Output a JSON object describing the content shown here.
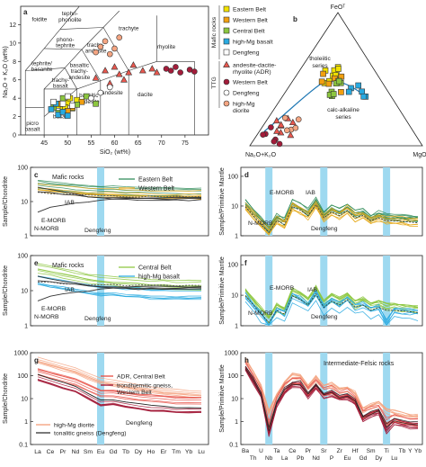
{
  "chart_data": [
    {
      "type": "scatter",
      "panel_label": "a",
      "xlabel": "SiO₂ (wt%)",
      "ylabel": "Na₂O + K₂O (wt%)",
      "xlim": [
        40,
        80
      ],
      "ylim": [
        0,
        14
      ],
      "xticks": [
        45,
        50,
        55,
        60,
        65,
        70,
        75
      ],
      "yticks": [
        0,
        2,
        4,
        6,
        8,
        10,
        12
      ],
      "fields": [
        "foidite",
        "tephri-phonolite",
        "phono-tephrite",
        "trachyte",
        "trachy-andesite",
        "tephrite/ basanite",
        "basaltic trachy-andesite",
        "rhyolite",
        "trachy-basalt",
        "dacite",
        "andesite",
        "basaltic andesite",
        "basalt",
        "picro basalt"
      ],
      "series": [
        {
          "name": "Eastern Belt",
          "color": "#f2e200",
          "points": [
            [
              48,
              3.2
            ],
            [
              49,
              2.8
            ],
            [
              50,
              3.5
            ],
            [
              51,
              2.9
            ],
            [
              52,
              3.8
            ],
            [
              50.5,
              4.0
            ],
            [
              49.5,
              3.0
            ]
          ]
        },
        {
          "name": "Western Belt",
          "color": "#f2a010",
          "points": [
            [
              48.5,
              3.4
            ],
            [
              51,
              3.0
            ],
            [
              53,
              3.6
            ],
            [
              50,
              2.6
            ]
          ]
        },
        {
          "name": "Central Belt",
          "color": "#8cc63f",
          "points": [
            [
              47,
              3.0
            ],
            [
              49,
              4.0
            ],
            [
              52,
              3.3
            ],
            [
              54,
              4.2
            ],
            [
              56,
              3.4
            ],
            [
              48,
              2.4
            ]
          ]
        },
        {
          "name": "high-Mg basalt",
          "color": "#29aae1",
          "points": [
            [
              46.5,
              2.8
            ],
            [
              48,
              2.2
            ],
            [
              49,
              2.5
            ],
            [
              47.5,
              3.4
            ],
            [
              50,
              2.1
            ]
          ]
        },
        {
          "name": "Dengfeng",
          "color": "#ffffff",
          "points": [
            [
              47,
              3.6
            ],
            [
              49,
              3.4
            ],
            [
              50,
              4.2
            ],
            [
              51,
              3.2
            ]
          ]
        },
        {
          "name": "andesite-dacite-rhyolite (ADR)",
          "color": "#e8574e",
          "points": [
            [
              56,
              6.2
            ],
            [
              58,
              7.0
            ],
            [
              60,
              7.4
            ],
            [
              61,
              6.6
            ],
            [
              63,
              6.8
            ],
            [
              64,
              7.6
            ],
            [
              66,
              7.0
            ],
            [
              68,
              7.2
            ],
            [
              69,
              6.8
            ],
            [
              59,
              5.6
            ],
            [
              62,
              6.0
            ]
          ]
        },
        {
          "name": "Western Belt",
          "color": "#a31c3a",
          "points": [
            [
              71,
              7.2
            ],
            [
              72,
              7.0
            ],
            [
              73,
              7.4
            ],
            [
              74,
              6.8
            ],
            [
              76,
              7.1
            ],
            [
              77,
              6.9
            ]
          ]
        },
        {
          "name": "Dengfeng",
          "color": "#ffffff",
          "points": [
            [
              55,
              4.0
            ],
            [
              57,
              4.6
            ],
            [
              59,
              5.2
            ]
          ]
        },
        {
          "name": "high-Mg diorite",
          "color": "#f4a582",
          "points": [
            [
              56,
              9.0
            ],
            [
              57,
              9.6
            ],
            [
              58,
              10.2
            ],
            [
              60,
              9.4
            ],
            [
              61,
              10.6
            ],
            [
              59,
              8.8
            ]
          ]
        }
      ]
    },
    {
      "type": "scatter",
      "panel_label": "b",
      "apices": [
        "FeOᵀ",
        "Na₂O+K₂O",
        "MgO"
      ],
      "curve_labels": [
        "tholeiitic series",
        "calc-alkaline series"
      ],
      "legend_groups": [
        {
          "title": "Mafic rocks",
          "items": [
            "Eastern Belt",
            "Western Belt",
            "Central Belt",
            "high-Mg basalt",
            "Dengfeng"
          ]
        },
        {
          "title": "TTG",
          "items": [
            "andesite-dacite-rhyolite (ADR)",
            "Western Belt",
            "Dengfeng",
            "high-Mg diorite"
          ]
        }
      ]
    },
    {
      "type": "line",
      "panel_label": "c",
      "title": "Mafic rocks",
      "ylabel": "Sample/Chondrite",
      "yscale": "log",
      "ylim": [
        1,
        100
      ],
      "yticks": [
        "1",
        "10",
        "100"
      ],
      "categories": [
        "La",
        "Ce",
        "Pr",
        "Nd",
        "Sm",
        "Eu",
        "Gd",
        "Tb",
        "Dy",
        "Ho",
        "Er",
        "Tm",
        "Yb",
        "Lu"
      ],
      "legend": [
        "Eastern Belt",
        "Western Belt"
      ],
      "annotations": [
        "IAB",
        "E-MORB",
        "N-MORB",
        "Dengfeng"
      ],
      "highlight_category": "Eu",
      "series": [
        {
          "name": "Eastern Belt",
          "color": "#2e8b57",
          "values": [
            30,
            27,
            25,
            23,
            21,
            20,
            20,
            19,
            19,
            18,
            18,
            18,
            17,
            17
          ]
        },
        {
          "name": "Western Belt",
          "color": "#e6a817",
          "values": [
            24,
            22,
            20,
            19,
            17,
            17,
            17,
            16,
            16,
            15,
            15,
            15,
            15,
            15
          ]
        },
        {
          "name": "IAB",
          "color": "#333333",
          "values": [
            26,
            22,
            19,
            17,
            14,
            13,
            12,
            12,
            11,
            11,
            11,
            11,
            11,
            11
          ]
        },
        {
          "name": "E-MORB",
          "color": "#333333",
          "values": [
            20,
            18,
            16,
            15,
            14,
            13,
            13,
            13,
            13,
            13,
            13,
            13,
            13,
            13
          ]
        },
        {
          "name": "N-MORB",
          "color": "#333333",
          "values": [
            5,
            7,
            8,
            9,
            10,
            11,
            12,
            12,
            12,
            12,
            12,
            12,
            12,
            12
          ]
        },
        {
          "name": "Dengfeng",
          "color": "#555555",
          "values": [
            18,
            17,
            16,
            16,
            15,
            15,
            15,
            14,
            14,
            14,
            14,
            14,
            14,
            14
          ]
        }
      ]
    },
    {
      "type": "line",
      "panel_label": "d",
      "ylabel": "Sample/Primitive Mantle",
      "yscale": "log",
      "ylim": [
        1,
        200
      ],
      "yticks": [
        "1",
        "10",
        "100"
      ],
      "categories_top": [
        "Ba",
        "U",
        "Ta",
        "Ce",
        "Pr",
        "Sr",
        "Zr",
        "Hf",
        "Sm",
        "Ti",
        "Tb",
        "Y",
        "Yb"
      ],
      "categories_bottom": [
        "Th",
        "Nb",
        "La",
        "Pb",
        "Nd",
        "P",
        "Eu",
        "Gd",
        "Dy",
        "Lu"
      ],
      "annotations": [
        "E-MORB",
        "IAB",
        "N-MORB",
        "Dengfeng"
      ],
      "highlight_categories": [
        "Nb",
        "Sr",
        "Ti"
      ]
    },
    {
      "type": "line",
      "panel_label": "e",
      "title": "Mafic rocks",
      "ylabel": "Sample/Chondrite",
      "yscale": "log",
      "ylim": [
        1,
        100
      ],
      "yticks": [
        "1",
        "10",
        "100"
      ],
      "categories": [
        "La",
        "Ce",
        "Pr",
        "Nd",
        "Sm",
        "Eu",
        "Gd",
        "Tb",
        "Dy",
        "Ho",
        "Er",
        "Tm",
        "Yb",
        "Lu"
      ],
      "legend": [
        "Central Belt",
        "high-Mg basalt"
      ],
      "annotations": [
        "IAB",
        "E-MORB",
        "N-MORB",
        "Dengfeng"
      ],
      "highlight_category": "Eu",
      "series": [
        {
          "name": "Central Belt",
          "color": "#8cc63f",
          "values": [
            40,
            34,
            28,
            24,
            20,
            18,
            17,
            16,
            15,
            14,
            14,
            13,
            13,
            13
          ]
        },
        {
          "name": "high-Mg basalt",
          "color": "#29aae1",
          "values": [
            20,
            17,
            15,
            13,
            11,
            10,
            10,
            9,
            9,
            8,
            8,
            8,
            8,
            8
          ]
        },
        {
          "name": "IAB",
          "color": "#333333",
          "values": [
            26,
            22,
            19,
            17,
            14,
            13,
            12,
            12,
            11,
            11,
            11,
            11,
            11,
            11
          ]
        },
        {
          "name": "E-MORB",
          "color": "#333333",
          "values": [
            20,
            18,
            16,
            15,
            14,
            13,
            13,
            13,
            13,
            13,
            13,
            13,
            13,
            13
          ]
        },
        {
          "name": "N-MORB",
          "color": "#333333",
          "values": [
            5,
            7,
            8,
            9,
            10,
            11,
            12,
            12,
            12,
            12,
            12,
            12,
            12,
            12
          ]
        },
        {
          "name": "Dengfeng",
          "color": "#555555",
          "values": [
            18,
            17,
            16,
            16,
            15,
            15,
            15,
            14,
            14,
            14,
            14,
            14,
            14,
            14
          ]
        }
      ]
    },
    {
      "type": "line",
      "panel_label": "f",
      "ylabel": "Sample/Primitive Mantle",
      "yscale": "log",
      "ylim": [
        1,
        200
      ],
      "yticks": [
        "1",
        "10",
        "100"
      ],
      "categories_top": [
        "Ba",
        "U",
        "Ta",
        "Ce",
        "Pr",
        "Sr",
        "Zr",
        "Hf",
        "Sm",
        "Ti",
        "Tb",
        "Y",
        "Yb"
      ],
      "categories_bottom": [
        "Th",
        "Nb",
        "La",
        "Pb",
        "Nd",
        "P",
        "Eu",
        "Gd",
        "Dy",
        "Lu"
      ],
      "annotations": [
        "E-MORB",
        "IAB",
        "N-MORB",
        "Dengfeng"
      ],
      "highlight_categories": [
        "Nb",
        "Sr",
        "Ti"
      ]
    },
    {
      "type": "line",
      "panel_label": "g",
      "ylabel": "Sample/Chondrite",
      "yscale": "log",
      "ylim": [
        0.1,
        1000
      ],
      "yticks": [
        "0.1",
        "1",
        "10",
        "100",
        "1000"
      ],
      "categories": [
        "La",
        "Ce",
        "Pr",
        "Nd",
        "Sm",
        "Eu",
        "Gd",
        "Tb",
        "Dy",
        "Ho",
        "Er",
        "Tm",
        "Yb",
        "Lu"
      ],
      "legend": [
        "ADR, Central Belt",
        "trondhjemitic gneiss, Western Belt",
        "high-Mg diorite",
        "tonalitic gneiss (Dengfeng)"
      ],
      "annotations": [
        "Dengfeng"
      ],
      "highlight_category": "Eu",
      "series": [
        {
          "name": "high-Mg diorite",
          "color": "#f4a582",
          "values": [
            450,
            320,
            220,
            160,
            90,
            55,
            45,
            35,
            28,
            24,
            20,
            18,
            16,
            15
          ]
        },
        {
          "name": "ADR, Central Belt",
          "color": "#e8574e",
          "values": [
            140,
            100,
            70,
            50,
            28,
            16,
            16,
            13,
            11,
            10,
            9,
            8,
            8,
            8
          ]
        },
        {
          "name": "trondhjemitic gneiss, Western Belt",
          "color": "#a31c3a",
          "values": [
            90,
            60,
            40,
            28,
            14,
            7,
            8,
            6,
            5,
            4,
            4,
            3.5,
            3.5,
            3.5
          ]
        },
        {
          "name": "tonalitic gneiss (Dengfeng)",
          "color": "#222222",
          "values": [
            110,
            75,
            50,
            34,
            17,
            9,
            9,
            7,
            6,
            5,
            4.5,
            4,
            4,
            4
          ]
        }
      ]
    },
    {
      "type": "line",
      "panel_label": "h",
      "title": "Intermediate-Felsic rocks",
      "ylabel": "Sample/Primitive Mantle",
      "yscale": "log",
      "ylim": [
        0.1,
        1000
      ],
      "yticks": [
        "0.1",
        "1",
        "10",
        "100",
        "1000"
      ],
      "categories_top": [
        "Ba",
        "U",
        "Ta",
        "Ce",
        "Pr",
        "Sr",
        "Zr",
        "Hf",
        "Sm",
        "Ti",
        "Tb",
        "Y",
        "Yb"
      ],
      "categories_bottom": [
        "Th",
        "Nb",
        "La",
        "Pb",
        "Nd",
        "P",
        "Eu",
        "Gd",
        "Dy",
        "Lu"
      ],
      "highlight_categories": [
        "Nb",
        "Sr",
        "Ti"
      ]
    }
  ]
}
